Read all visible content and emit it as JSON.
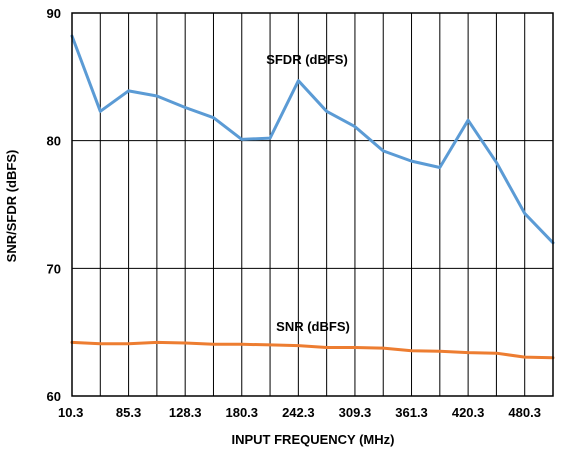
{
  "chart_data": {
    "type": "line",
    "title": "",
    "xlabel": "INPUT FREQUENCY (MHz)",
    "ylabel": "SNR/SFDR (dBFS)",
    "ylim": [
      60,
      90
    ],
    "yticks": [
      "60",
      "70",
      "80",
      "90"
    ],
    "x_tick_labels": [
      "10.3",
      "85.3",
      "128.3",
      "180.3",
      "242.3",
      "309.3",
      "361.3",
      "420.3",
      "480.3"
    ],
    "grid": true,
    "series": [
      {
        "name": "SFDR (dBFS)",
        "color": "#5b9bd5",
        "values": [
          88.2,
          82.3,
          83.9,
          83.5,
          82.6,
          81.8,
          80.1,
          80.2,
          84.7,
          82.3,
          81.1,
          79.2,
          78.4,
          77.9,
          81.6,
          78.3,
          74.3,
          72.0
        ]
      },
      {
        "name": "SNR (dBFS)",
        "color": "#ed7d31",
        "values": [
          64.2,
          64.1,
          64.1,
          64.2,
          64.15,
          64.05,
          64.05,
          64.0,
          63.95,
          63.8,
          63.8,
          63.75,
          63.55,
          63.5,
          63.4,
          63.35,
          63.05,
          63.0
        ]
      }
    ]
  }
}
